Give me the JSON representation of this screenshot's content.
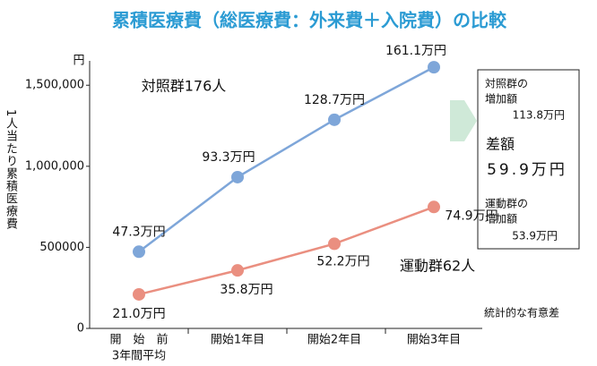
{
  "chart_data": {
    "type": "line",
    "title": "累積医療費（総医療費：外来費＋入院費）の比較",
    "y_unit": "円",
    "y_label": "1人当たり累積医療費",
    "categories": [
      [
        "開　始　前",
        "3年間平均"
      ],
      "開始1年目",
      "開始2年目",
      "開始3年目"
    ],
    "ylim": [
      0,
      1700000
    ],
    "yticks": [
      0,
      500000,
      {
        "value": 1000000,
        "label": "1,000,000"
      },
      {
        "value": 1500000,
        "label": "1,500,000"
      }
    ],
    "series": [
      {
        "name": "対照群176人",
        "color": "#7ea6d9",
        "values": [
          473000,
          933000,
          1287000,
          1611000
        ],
        "value_labels": [
          "47.3万円",
          "93.3万円",
          "128.7万円",
          "161.1万円"
        ]
      },
      {
        "name": "運動群62人",
        "color": "#ea8f80",
        "values": [
          210000,
          358000,
          522000,
          749000
        ],
        "value_labels": [
          "21.0万円",
          "35.8万円",
          "52.2万円",
          "74.9万円"
        ]
      }
    ],
    "annotation": "統計的な有意差",
    "side_box": {
      "control_label": [
        "対照群の",
        "増加額"
      ],
      "control_value": "113.8万円",
      "diff_label": "差額",
      "diff_value": "59.9万円",
      "exercise_label": [
        "運動群の",
        "増加額"
      ],
      "exercise_value": "53.9万円"
    }
  }
}
